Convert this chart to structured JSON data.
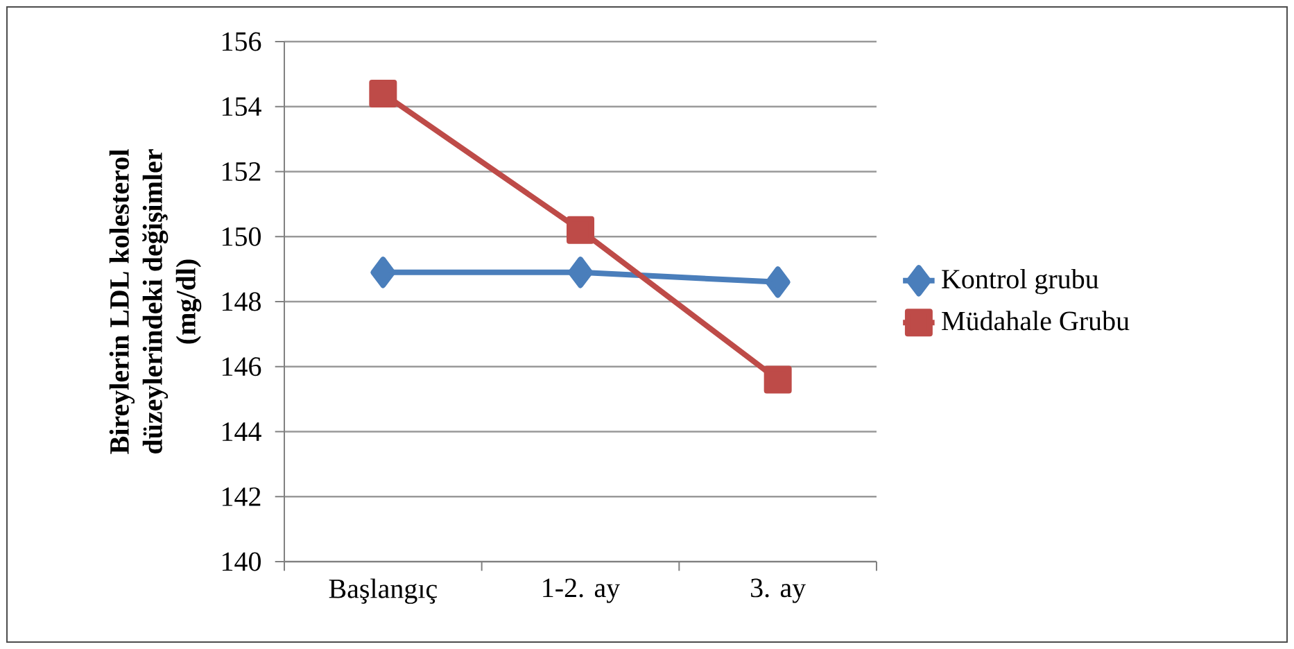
{
  "chart_data": {
    "type": "line",
    "ylabel": "Bireylerin LDL kolesterol düzeylerindeki değişimler (mg/dl)",
    "categories": [
      "Başlangıç",
      "1-2. ay",
      "3. ay"
    ],
    "series": [
      {
        "name": "Kontrol grubu",
        "color": "#4a7ebb",
        "values": [
          148.9,
          148.9,
          148.6
        ],
        "marker": "diamond"
      },
      {
        "name": "Müdahale Grubu",
        "color": "#be4b48",
        "values": [
          154.4,
          150.2,
          145.6
        ],
        "marker": "square"
      }
    ],
    "ylim": [
      140,
      156
    ],
    "yticks": [
      140,
      142,
      144,
      146,
      148,
      150,
      152,
      154,
      156
    ],
    "grid": "y",
    "legend": "right",
    "line_style": "solid"
  }
}
